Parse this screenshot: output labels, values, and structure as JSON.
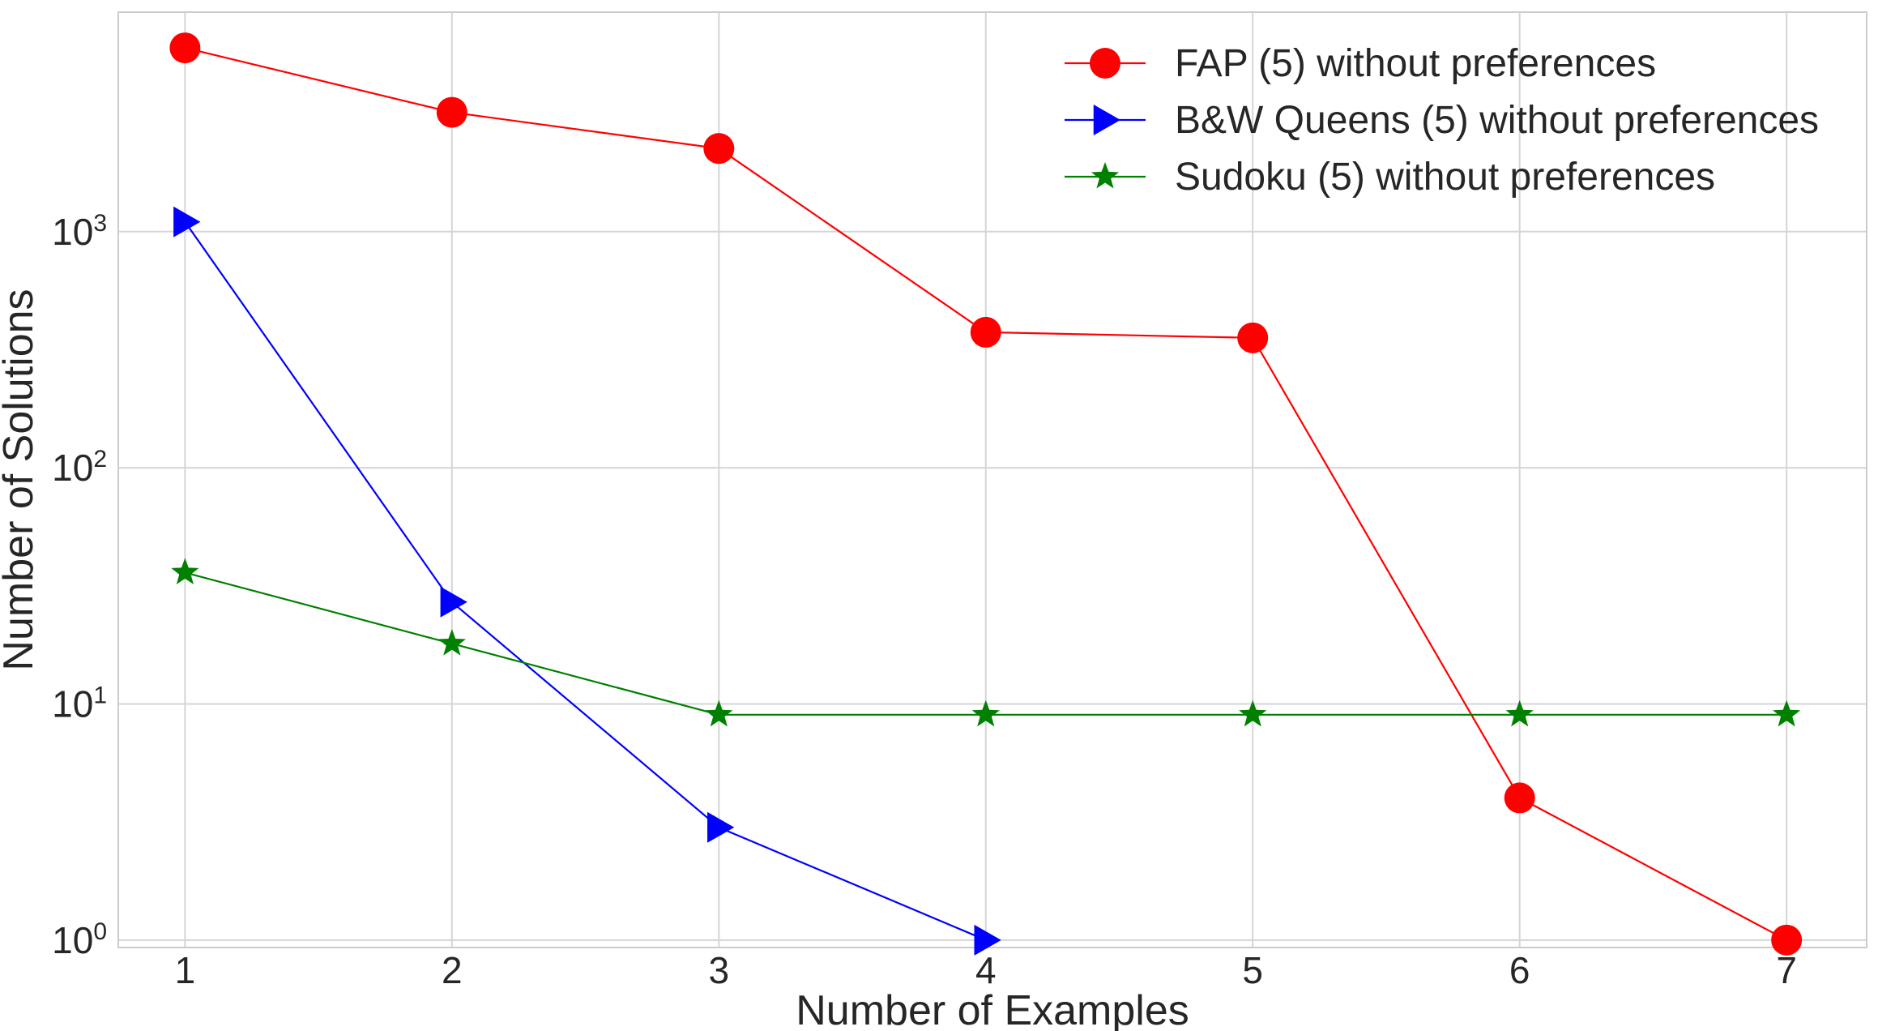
{
  "chart_data": {
    "type": "line",
    "title": "",
    "xlabel": "Number of Examples",
    "ylabel": "Number of Solutions",
    "yscale": "log",
    "xlim": [
      0.75,
      7.3
    ],
    "ylim": [
      0.93,
      8500
    ],
    "x_ticks": [
      "1",
      "2",
      "3",
      "4",
      "5",
      "6",
      "7"
    ],
    "y_ticks": [
      {
        "base": "10",
        "exp": "0",
        "value": 1
      },
      {
        "base": "10",
        "exp": "1",
        "value": 10
      },
      {
        "base": "10",
        "exp": "2",
        "value": 100
      },
      {
        "base": "10",
        "exp": "3",
        "value": 1000
      }
    ],
    "grid": true,
    "legend_position": "top-right",
    "series": [
      {
        "name": "FAP (5) without preferences",
        "color": "#ff0000",
        "marker": "circle",
        "x": [
          1,
          2,
          3,
          4,
          5,
          6,
          7
        ],
        "y": [
          6000,
          3200,
          2250,
          375,
          355,
          4,
          1
        ]
      },
      {
        "name": "B&W Queens (5) without preferences",
        "color": "#0000ff",
        "marker": "triangle-right",
        "x": [
          1,
          2,
          3,
          4
        ],
        "y": [
          1100,
          27,
          3,
          1
        ]
      },
      {
        "name": "Sudoku (5) without preferences",
        "color": "#008000",
        "marker": "star",
        "x": [
          1,
          2,
          3,
          4,
          5,
          6,
          7
        ],
        "y": [
          36,
          18,
          9,
          9,
          9,
          9,
          9
        ]
      }
    ]
  }
}
